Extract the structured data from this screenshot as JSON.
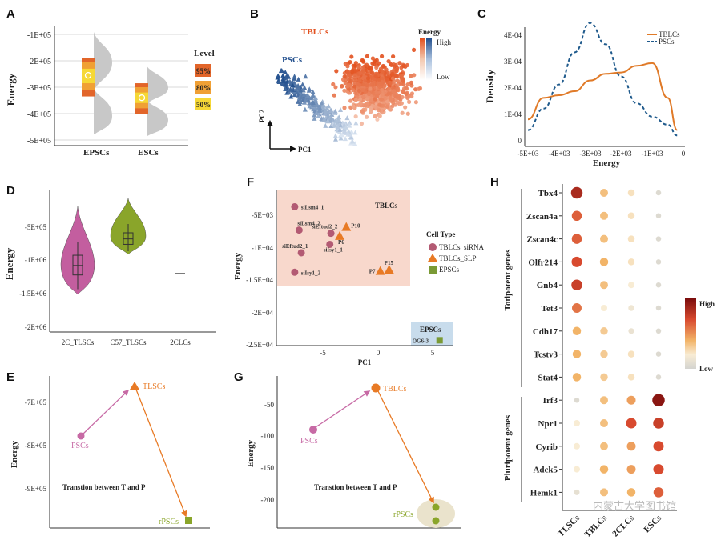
{
  "panels": {
    "A": "A",
    "B": "B",
    "C": "C",
    "D": "D",
    "E": "E",
    "F": "F",
    "G": "G",
    "H": "H"
  },
  "panel_a": {
    "ylabel": "Energy",
    "yticks": [
      "-1E+05",
      "-2E+05",
      "-3E+05",
      "-4E+05",
      "-5E+05"
    ],
    "categories": [
      "EPSCs",
      "ESCs"
    ],
    "legend_title": "Level",
    "legend_items": [
      "95%",
      "80%",
      "50%"
    ],
    "colors": {
      "95": "#e2652a",
      "80": "#f0a035",
      "50": "#f6d836",
      "dist": "#c8c8c8"
    },
    "chart_data": {
      "type": "violin-interval",
      "ylim": [
        -500000,
        -100000
      ],
      "groups": [
        {
          "name": "EPSCs",
          "median": -255000,
          "i50": [
            -230000,
            -285000
          ],
          "i80": [
            -205000,
            -310000
          ],
          "i95": [
            -190000,
            -335000
          ]
        },
        {
          "name": "ESCs",
          "median": -340000,
          "i50": [
            -320000,
            -360000
          ],
          "i80": [
            -300000,
            -380000
          ],
          "i95": [
            -285000,
            -400000
          ]
        }
      ]
    }
  },
  "panel_b": {
    "labels": {
      "tblcs": "TBLCs",
      "pscs": "PSCs"
    },
    "axis_x": "PC1",
    "axis_y": "PC2",
    "legend_title": "Energy",
    "legend_high": "High",
    "legend_low": "Low",
    "colors": {
      "tblcs": "#e8602a",
      "pscs": "#2f5f9e"
    }
  },
  "panel_c": {
    "ylabel": "Density",
    "xlabel": "Energy",
    "yticks": [
      "0",
      "1E-04",
      "2E-04",
      "3E-04",
      "4E-04"
    ],
    "xticks": [
      "-5E+03",
      "-4E+03",
      "-3E+03",
      "-2E+03",
      "-1E+03",
      "0"
    ],
    "legend": [
      "TBLCs",
      "PSCs"
    ],
    "colors": {
      "TBLCs": "#e07a28",
      "PSCs": "#1f5a8c"
    },
    "chart_data": {
      "type": "line",
      "x": [
        -5000,
        -4500,
        -4000,
        -3500,
        -3000,
        -2500,
        -2000,
        -1500,
        -1000,
        -500,
        -200
      ],
      "series": [
        {
          "name": "TBLCs",
          "values": [
            8e-05,
            0.00016,
            0.00017,
            0.000185,
            0.000225,
            0.00025,
            0.000255,
            0.00028,
            0.00029,
            0.00016,
            4e-05
          ]
        },
        {
          "name": "PSCs",
          "values": [
            4e-05,
            0.00012,
            0.00021,
            0.00033,
            0.00044,
            0.00036,
            0.00024,
            0.00014,
            9e-05,
            6e-05,
            2e-05
          ]
        }
      ],
      "ylim": [
        0,
        0.00045
      ],
      "xlim": [
        -5000,
        0
      ]
    }
  },
  "panel_d": {
    "ylabel": "Energy",
    "yticks": [
      "-5E+05",
      "-1E+06",
      "-1.5E+06",
      "-2E+06"
    ],
    "categories": [
      "2C_TLSCs",
      "C57_TLSCs",
      "2CLCs"
    ],
    "colors": {
      "2C_TLSCs": "#c35e9f",
      "C57_TLSCs": "#8aa52a"
    },
    "chart_data": {
      "type": "violin",
      "ylim": [
        -2000000,
        0
      ],
      "groups": [
        {
          "name": "2C_TLSCs",
          "median": -1080000,
          "q1": -1220000,
          "q3": -930000,
          "min": -1430000,
          "max": -730000
        },
        {
          "name": "C57_TLSCs",
          "median": -690000,
          "q1": -770000,
          "q3": -600000,
          "min": -870000,
          "max": -470000
        },
        {
          "name": "2CLCs",
          "median": -1200000
        }
      ]
    }
  },
  "panel_e": {
    "ylabel": "Energy",
    "yticks": [
      "-7E+05",
      "-8E+05",
      "-9E+05"
    ],
    "nodes": {
      "pscs": "PSCs",
      "tlscs": "TLSCs",
      "rpscs": "rPSCs"
    },
    "caption": "Transtion between T and P",
    "colors": {
      "pscs": "#c76aa5",
      "tlscs": "#e87a25",
      "rpscs": "#8aa52a"
    }
  },
  "panel_f": {
    "ylabel": "Energy",
    "xlabel": "PC1",
    "yticks": [
      "-5E+03",
      "-1E+04",
      "-1.5E+04",
      "-2E+04",
      "-2.5E+04"
    ],
    "xticks": [
      "-5",
      "0",
      "5"
    ],
    "region_tblcs": "TBLCs",
    "region_epscs": "EPSCs",
    "legend_title": "Cell Type",
    "legend_items": [
      "TBLCs_siRNA",
      "TBLCs_SLP",
      "EPSCs"
    ],
    "colors": {
      "siRNA": "#b35a73",
      "SLP": "#e87a25",
      "EPSCs": "#7a9a35",
      "tblcs_bg": "#f8d8cc",
      "epscs_bg": "#c8dcec"
    },
    "chart_data": {
      "type": "scatter",
      "xlim": [
        -9,
        7
      ],
      "ylim": [
        -25000,
        -3000
      ],
      "points": [
        {
          "label": "siLsm4_1",
          "x": -7.6,
          "y": -3700,
          "type": "TBLCs_siRNA"
        },
        {
          "label": "siLsm4_2",
          "x": -7.2,
          "y": -7300,
          "type": "TBLCs_siRNA"
        },
        {
          "label": "siEftud2_2",
          "x": -4.3,
          "y": -7800,
          "type": "TBLCs_siRNA"
        },
        {
          "label": "siEftud2_1",
          "x": -7.0,
          "y": -10800,
          "type": "TBLCs_siRNA"
        },
        {
          "label": "siIsy1_1",
          "x": -4.4,
          "y": -9500,
          "type": "TBLCs_siRNA"
        },
        {
          "label": "siIsy1_2",
          "x": -7.6,
          "y": -13800,
          "type": "TBLCs_siRNA"
        },
        {
          "label": "P10",
          "x": -2.9,
          "y": -6800,
          "type": "TBLCs_SLP"
        },
        {
          "label": "P6",
          "x": -3.5,
          "y": -8200,
          "type": "TBLCs_SLP"
        },
        {
          "label": "P15",
          "x": 1.0,
          "y": -13400,
          "type": "TBLCs_SLP"
        },
        {
          "label": "P7",
          "x": 0.2,
          "y": -13600,
          "type": "TBLCs_SLP"
        },
        {
          "label": "OG6-3",
          "x": 5.6,
          "y": -24300,
          "type": "EPSCs"
        }
      ]
    }
  },
  "panel_g": {
    "ylabel": "Energy",
    "yticks": [
      "-50",
      "-100",
      "-150",
      "-200"
    ],
    "nodes": {
      "pscs": "PSCs",
      "tblcs": "TBLCs",
      "rpscs": "rPSCs"
    },
    "caption": "Transtion between T and P",
    "colors": {
      "pscs": "#c76aa5",
      "tblcs": "#e87a25",
      "rpscs": "#8aa52a"
    }
  },
  "panel_h": {
    "group_toti": "Totipotent genes",
    "group_pluri": "Pluripotent genes",
    "genes": [
      "Tbx4",
      "Zscan4a",
      "Zscan4c",
      "Olfr214",
      "Gnb4",
      "Tet3",
      "Cdh17",
      "Tcstv3",
      "Stat4",
      "Irf3",
      "Npr1",
      "Cyrib",
      "Adck5",
      "Hemk1"
    ],
    "columns": [
      "TLSCs",
      "TBLCs",
      "2CLCs",
      "ESCs"
    ],
    "legend_high": "High",
    "legend_low": "Low",
    "chart_data": {
      "type": "heatmap",
      "rows": [
        "Tbx4",
        "Zscan4a",
        "Zscan4c",
        "Olfr214",
        "Gnb4",
        "Tet3",
        "Cdh17",
        "Tcstv3",
        "Stat4",
        "Irf3",
        "Npr1",
        "Cyrib",
        "Adck5",
        "Hemk1"
      ],
      "cols": [
        "TLSCs",
        "TBLCs",
        "2CLCs",
        "ESCs"
      ],
      "values": [
        [
          0.85,
          0.4,
          0.25,
          0.05
        ],
        [
          0.65,
          0.4,
          0.25,
          0.05
        ],
        [
          0.65,
          0.4,
          0.25,
          0.05
        ],
        [
          0.7,
          0.45,
          0.25,
          0.05
        ],
        [
          0.75,
          0.4,
          0.2,
          0.05
        ],
        [
          0.6,
          0.2,
          0.15,
          0.05
        ],
        [
          0.45,
          0.35,
          0.12,
          0.05
        ],
        [
          0.45,
          0.35,
          0.25,
          0.05
        ],
        [
          0.45,
          0.35,
          0.25,
          0.05
        ],
        [
          0.05,
          0.4,
          0.5,
          0.95
        ],
        [
          0.2,
          0.4,
          0.7,
          0.75
        ],
        [
          0.2,
          0.4,
          0.5,
          0.7
        ],
        [
          0.2,
          0.45,
          0.5,
          0.7
        ],
        [
          0.1,
          0.4,
          0.45,
          0.65
        ]
      ]
    }
  },
  "watermark": "内蒙古大学图书馆"
}
